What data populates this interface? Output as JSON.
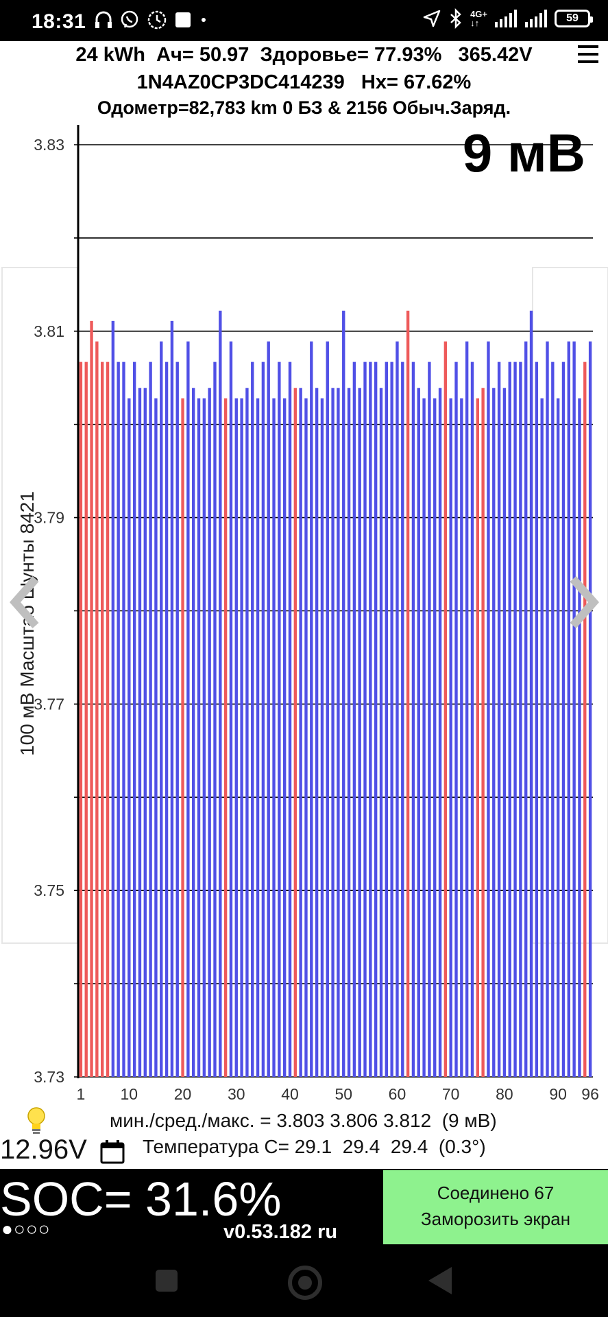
{
  "status_bar": {
    "time": "18:31",
    "network": "4G+",
    "battery": "59",
    "icons": [
      "headphones-icon",
      "viber-icon",
      "clock-icon",
      "square-icon",
      "dot-icon",
      "location-icon",
      "bluetooth-icon",
      "signal-icon",
      "signal2-icon",
      "battery-icon"
    ]
  },
  "header": {
    "line1": "24 kWh  Ач= 50.97  Здоровье= 77.93%   365.42V",
    "line2": "1N4AZ0CP3DC414239   Hx= 67.62%",
    "line3": "Одометр=82,783 km 0 БЗ & 2156 Обыч.Заряд."
  },
  "chart": {
    "spread_label": "9 мВ",
    "y_axis_label": "100 мВ Масштаб  Шунты 8421"
  },
  "chart_data": {
    "type": "bar",
    "ylabel": "100 мВ Масштаб  Шунты 8421",
    "ylim": [
      3.73,
      3.83
    ],
    "y_ticks": [
      "3.83",
      "3.81",
      "3.79",
      "3.77",
      "3.75",
      "3.73"
    ],
    "x_ticks": [
      "1",
      "10",
      "20",
      "30",
      "40",
      "50",
      "60",
      "70",
      "80",
      "90",
      "96"
    ],
    "grid": true,
    "colors": {
      "normal": "#5050e6",
      "shunt": "#ee5a5a"
    },
    "cells": [
      1,
      2,
      3,
      4,
      5,
      6,
      7,
      8,
      9,
      10,
      11,
      12,
      13,
      14,
      15,
      16,
      17,
      18,
      19,
      20,
      21,
      22,
      23,
      24,
      25,
      26,
      27,
      28,
      29,
      30,
      31,
      32,
      33,
      34,
      35,
      36,
      37,
      38,
      39,
      40,
      41,
      42,
      43,
      44,
      45,
      46,
      47,
      48,
      49,
      50,
      51,
      52,
      53,
      54,
      55,
      56,
      57,
      58,
      59,
      60,
      61,
      62,
      63,
      64,
      65,
      66,
      67,
      68,
      69,
      70,
      71,
      72,
      73,
      74,
      75,
      76,
      77,
      78,
      79,
      80,
      81,
      82,
      83,
      84,
      85,
      86,
      87,
      88,
      89,
      90,
      91,
      92,
      93,
      94,
      95,
      96
    ],
    "values": [
      3.8067,
      3.8067,
      3.8111,
      3.8089,
      3.8067,
      3.8067,
      3.8111,
      3.8067,
      3.8067,
      3.8028,
      3.8067,
      3.8039,
      3.8039,
      3.8067,
      3.8028,
      3.8089,
      3.8067,
      3.8111,
      3.8067,
      3.8028,
      3.8089,
      3.8039,
      3.8028,
      3.8028,
      3.8039,
      3.8067,
      3.8122,
      3.8028,
      3.8089,
      3.8028,
      3.8028,
      3.8039,
      3.8067,
      3.8028,
      3.8067,
      3.8089,
      3.8028,
      3.8067,
      3.8028,
      3.8067,
      3.8039,
      3.8039,
      3.8028,
      3.8089,
      3.8039,
      3.8028,
      3.8089,
      3.8039,
      3.8039,
      3.8122,
      3.8039,
      3.8067,
      3.8039,
      3.8067,
      3.8067,
      3.8067,
      3.8039,
      3.8067,
      3.8067,
      3.8089,
      3.8067,
      3.8122,
      3.8067,
      3.8039,
      3.8028,
      3.8067,
      3.8028,
      3.8039,
      3.8089,
      3.8028,
      3.8067,
      3.8028,
      3.8089,
      3.8067,
      3.8028,
      3.8039,
      3.8089,
      3.8039,
      3.8067,
      3.8039,
      3.8067,
      3.8067,
      3.8067,
      3.8089,
      3.8122,
      3.8067,
      3.8028,
      3.8089,
      3.8067,
      3.8028,
      3.8067,
      3.8089,
      3.8089,
      3.8028,
      3.8067,
      3.8089
    ],
    "shunted": [
      1,
      2,
      3,
      4,
      5,
      6,
      20,
      28,
      41,
      62,
      69,
      75,
      76,
      95
    ]
  },
  "stats": {
    "min_avg_max": "мин./сред./макс. = 3.803 3.806 3.812  (9 мВ)",
    "temperature": "Температура C= 29.1  29.4  29.4  (0.3°)",
    "voltage_12v": "12.96V"
  },
  "bottom": {
    "soc": "SOC= 31.6%",
    "dots": "●○○○",
    "version": "v0.53.182 ru",
    "connected": "Соединено 67",
    "freeze": "Заморозить экран"
  }
}
